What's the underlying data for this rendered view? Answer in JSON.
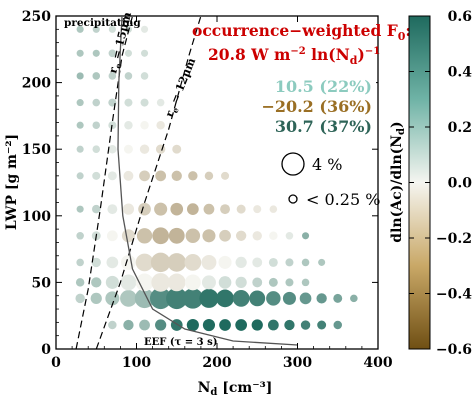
{
  "chart_data": {
    "type": "scatter",
    "title": "",
    "xlabel": "N",
    "xlabel_sub": "d",
    "xlabel_unit": " [cm⁻³]",
    "ylabel": "LWP [g m⁻²]",
    "xlim": [
      0,
      400
    ],
    "ylim": [
      0,
      250
    ],
    "xticks": [
      0,
      100,
      200,
      300,
      400
    ],
    "yticks": [
      0,
      50,
      100,
      150,
      200,
      250
    ],
    "bin_width_x": 20,
    "bin_width_y": 16.67,
    "size_legend": [
      {
        "label": "4 %",
        "occurrence_pct": 4
      },
      {
        "label": "< 0.25 %",
        "occurrence_pct": 0.25
      }
    ],
    "colorbar": {
      "label": "dln(Ac)/dln(N",
      "label_sub": "d",
      "label_end": ")",
      "range": [
        -0.6,
        0.6
      ],
      "ticks": [
        0.6,
        0.4,
        0.2,
        0.0,
        -0.2,
        -0.4,
        -0.6
      ],
      "tick_labels": [
        "0.6",
        "0.4",
        "0.2",
        "0.0",
        "−0.2",
        "−0.4",
        "−0.6"
      ],
      "positive_color": "#1f6a5e",
      "neutral_color": "#f5f5f0",
      "negative_color": "#7a5a1e"
    },
    "annotations": {
      "header_line1": "occurrence−weighted F",
      "header_line1_sub": "0",
      "header_line1_end": ":",
      "header_line2": "20.8 W m",
      "header_line2_exp": "−2",
      "header_line2_mid": " ln(N",
      "header_line2_sub": "d",
      "header_line2_end": ")",
      "header_line2_exp2": "−1",
      "header_color": "#cc0000",
      "components": [
        {
          "value": "10.5 (22%)",
          "color": "#8ccbbf"
        },
        {
          "value": "−20.2 (36%)",
          "color": "#9a6f24"
        },
        {
          "value": "30.7 (37%)",
          "color": "#2e6458"
        }
      ],
      "precipitating": "precipitating",
      "re15": "r",
      "re15_sub": "e",
      "re15_end": " = 15μm",
      "re12": "r",
      "re12_sub": "e",
      "re12_end": " = 12μm",
      "eef": "EEF (τ = 3 s)"
    },
    "curves": {
      "re_15": [
        [
          25,
          0
        ],
        [
          40,
          45
        ],
        [
          55,
          105
        ],
        [
          70,
          170
        ],
        [
          82,
          220
        ],
        [
          95,
          250
        ]
      ],
      "re_12": [
        [
          50,
          0
        ],
        [
          80,
          50
        ],
        [
          110,
          110
        ],
        [
          140,
          165
        ],
        [
          165,
          220
        ],
        [
          180,
          250
        ]
      ],
      "eef": [
        [
          82,
          250
        ],
        [
          78,
          200
        ],
        [
          77,
          150
        ],
        [
          83,
          100
        ],
        [
          95,
          60
        ],
        [
          120,
          30
        ],
        [
          160,
          15
        ],
        [
          220,
          6
        ],
        [
          300,
          3
        ]
      ]
    },
    "points": [
      {
        "x": 70,
        "y": 18,
        "v": 0.15,
        "s": 0.8
      },
      {
        "x": 90,
        "y": 18,
        "v": 0.3,
        "s": 1.2
      },
      {
        "x": 110,
        "y": 18,
        "v": 0.25,
        "s": 1.3
      },
      {
        "x": 130,
        "y": 18,
        "v": 0.45,
        "s": 1.4
      },
      {
        "x": 150,
        "y": 18,
        "v": 0.55,
        "s": 1.5
      },
      {
        "x": 170,
        "y": 18,
        "v": 0.6,
        "s": 1.6
      },
      {
        "x": 190,
        "y": 18,
        "v": 0.6,
        "s": 1.6
      },
      {
        "x": 210,
        "y": 18,
        "v": 0.6,
        "s": 1.5
      },
      {
        "x": 230,
        "y": 18,
        "v": 0.6,
        "s": 1.5
      },
      {
        "x": 250,
        "y": 18,
        "v": 0.6,
        "s": 1.4
      },
      {
        "x": 270,
        "y": 18,
        "v": 0.55,
        "s": 1.3
      },
      {
        "x": 290,
        "y": 18,
        "v": 0.55,
        "s": 1.2
      },
      {
        "x": 310,
        "y": 18,
        "v": 0.5,
        "s": 1.0
      },
      {
        "x": 330,
        "y": 18,
        "v": 0.5,
        "s": 0.9
      },
      {
        "x": 350,
        "y": 18,
        "v": 0.4,
        "s": 0.8
      },
      {
        "x": 30,
        "y": 38,
        "v": 0.15,
        "s": 1.0
      },
      {
        "x": 50,
        "y": 38,
        "v": 0.2,
        "s": 1.4
      },
      {
        "x": 70,
        "y": 38,
        "v": 0.2,
        "s": 2.0
      },
      {
        "x": 90,
        "y": 38,
        "v": 0.2,
        "s": 2.6
      },
      {
        "x": 110,
        "y": 38,
        "v": 0.25,
        "s": 3.2
      },
      {
        "x": 130,
        "y": 38,
        "v": 0.45,
        "s": 3.6
      },
      {
        "x": 150,
        "y": 38,
        "v": 0.5,
        "s": 3.6
      },
      {
        "x": 170,
        "y": 38,
        "v": 0.5,
        "s": 3.4
      },
      {
        "x": 190,
        "y": 38,
        "v": 0.55,
        "s": 3.1
      },
      {
        "x": 210,
        "y": 38,
        "v": 0.55,
        "s": 2.8
      },
      {
        "x": 230,
        "y": 38,
        "v": 0.5,
        "s": 2.6
      },
      {
        "x": 250,
        "y": 38,
        "v": 0.5,
        "s": 2.4
      },
      {
        "x": 270,
        "y": 38,
        "v": 0.45,
        "s": 2.1
      },
      {
        "x": 290,
        "y": 38,
        "v": 0.45,
        "s": 1.8
      },
      {
        "x": 310,
        "y": 38,
        "v": 0.4,
        "s": 1.5
      },
      {
        "x": 330,
        "y": 38,
        "v": 0.4,
        "s": 1.2
      },
      {
        "x": 350,
        "y": 38,
        "v": 0.35,
        "s": 0.9
      },
      {
        "x": 370,
        "y": 38,
        "v": 0.3,
        "s": 0.6
      },
      {
        "x": 30,
        "y": 50,
        "v": 0.2,
        "s": 0.8
      },
      {
        "x": 50,
        "y": 50,
        "v": 0.2,
        "s": 1.2
      },
      {
        "x": 70,
        "y": 50,
        "v": 0.1,
        "s": 1.8
      },
      {
        "x": 90,
        "y": 50,
        "v": 0.05,
        "s": 2.4
      },
      {
        "x": 110,
        "y": 50,
        "v": 0.0,
        "s": 2.8
      },
      {
        "x": 130,
        "y": 50,
        "v": -0.05,
        "s": 3.0
      },
      {
        "x": 150,
        "y": 50,
        "v": -0.05,
        "s": 2.8
      },
      {
        "x": 170,
        "y": 50,
        "v": 0.0,
        "s": 2.4
      },
      {
        "x": 190,
        "y": 50,
        "v": 0.05,
        "s": 2.0
      },
      {
        "x": 210,
        "y": 50,
        "v": 0.1,
        "s": 1.7
      },
      {
        "x": 230,
        "y": 50,
        "v": 0.1,
        "s": 1.4
      },
      {
        "x": 250,
        "y": 50,
        "v": 0.15,
        "s": 1.1
      },
      {
        "x": 270,
        "y": 50,
        "v": 0.2,
        "s": 0.9
      },
      {
        "x": 290,
        "y": 50,
        "v": 0.2,
        "s": 0.7
      },
      {
        "x": 310,
        "y": 50,
        "v": 0.2,
        "s": 0.6
      },
      {
        "x": 30,
        "y": 65,
        "v": 0.15,
        "s": 0.6
      },
      {
        "x": 50,
        "y": 65,
        "v": 0.1,
        "s": 1.0
      },
      {
        "x": 70,
        "y": 65,
        "v": 0.05,
        "s": 1.5
      },
      {
        "x": 90,
        "y": 65,
        "v": 0.0,
        "s": 2.2
      },
      {
        "x": 110,
        "y": 65,
        "v": -0.1,
        "s": 2.8
      },
      {
        "x": 130,
        "y": 65,
        "v": -0.15,
        "s": 3.2
      },
      {
        "x": 150,
        "y": 65,
        "v": -0.15,
        "s": 3.0
      },
      {
        "x": 170,
        "y": 65,
        "v": -0.1,
        "s": 2.6
      },
      {
        "x": 190,
        "y": 65,
        "v": -0.05,
        "s": 2.2
      },
      {
        "x": 210,
        "y": 65,
        "v": 0.0,
        "s": 1.8
      },
      {
        "x": 230,
        "y": 65,
        "v": 0.05,
        "s": 1.4
      },
      {
        "x": 250,
        "y": 65,
        "v": 0.05,
        "s": 1.1
      },
      {
        "x": 270,
        "y": 65,
        "v": 0.1,
        "s": 0.9
      },
      {
        "x": 290,
        "y": 65,
        "v": 0.15,
        "s": 0.7
      },
      {
        "x": 310,
        "y": 65,
        "v": 0.2,
        "s": 0.6
      },
      {
        "x": 330,
        "y": 65,
        "v": 0.2,
        "s": 0.5
      },
      {
        "x": 30,
        "y": 85,
        "v": 0.15,
        "s": 0.6
      },
      {
        "x": 50,
        "y": 85,
        "v": 0.1,
        "s": 0.9
      },
      {
        "x": 70,
        "y": 85,
        "v": 0.0,
        "s": 1.3
      },
      {
        "x": 90,
        "y": 85,
        "v": -0.1,
        "s": 1.8
      },
      {
        "x": 110,
        "y": 85,
        "v": -0.2,
        "s": 2.3
      },
      {
        "x": 130,
        "y": 85,
        "v": -0.25,
        "s": 2.6
      },
      {
        "x": 150,
        "y": 85,
        "v": -0.25,
        "s": 2.4
      },
      {
        "x": 170,
        "y": 85,
        "v": -0.2,
        "s": 2.1
      },
      {
        "x": 190,
        "y": 85,
        "v": -0.2,
        "s": 1.8
      },
      {
        "x": 210,
        "y": 85,
        "v": -0.15,
        "s": 1.5
      },
      {
        "x": 230,
        "y": 85,
        "v": -0.1,
        "s": 1.2
      },
      {
        "x": 250,
        "y": 85,
        "v": -0.05,
        "s": 1.0
      },
      {
        "x": 270,
        "y": 85,
        "v": 0.0,
        "s": 0.8
      },
      {
        "x": 290,
        "y": 85,
        "v": 0.05,
        "s": 0.6
      },
      {
        "x": 310,
        "y": 85,
        "v": 0.3,
        "s": 0.5
      },
      {
        "x": 30,
        "y": 105,
        "v": 0.2,
        "s": 0.5
      },
      {
        "x": 50,
        "y": 105,
        "v": 0.15,
        "s": 0.8
      },
      {
        "x": 70,
        "y": 105,
        "v": 0.05,
        "s": 1.1
      },
      {
        "x": 90,
        "y": 105,
        "v": -0.05,
        "s": 1.4
      },
      {
        "x": 110,
        "y": 105,
        "v": -0.15,
        "s": 1.7
      },
      {
        "x": 130,
        "y": 105,
        "v": -0.2,
        "s": 1.8
      },
      {
        "x": 150,
        "y": 105,
        "v": -0.25,
        "s": 1.7
      },
      {
        "x": 170,
        "y": 105,
        "v": -0.25,
        "s": 1.5
      },
      {
        "x": 190,
        "y": 105,
        "v": -0.2,
        "s": 1.3
      },
      {
        "x": 210,
        "y": 105,
        "v": -0.15,
        "s": 1.1
      },
      {
        "x": 230,
        "y": 105,
        "v": -0.1,
        "s": 0.9
      },
      {
        "x": 250,
        "y": 105,
        "v": -0.05,
        "s": 0.7
      },
      {
        "x": 270,
        "y": 105,
        "v": -0.05,
        "s": 0.6
      },
      {
        "x": 30,
        "y": 130,
        "v": 0.15,
        "s": 0.5
      },
      {
        "x": 50,
        "y": 130,
        "v": 0.1,
        "s": 0.7
      },
      {
        "x": 70,
        "y": 130,
        "v": 0.05,
        "s": 0.9
      },
      {
        "x": 90,
        "y": 130,
        "v": -0.05,
        "s": 1.1
      },
      {
        "x": 110,
        "y": 130,
        "v": -0.15,
        "s": 1.3
      },
      {
        "x": 130,
        "y": 130,
        "v": -0.2,
        "s": 1.3
      },
      {
        "x": 150,
        "y": 130,
        "v": -0.2,
        "s": 1.2
      },
      {
        "x": 170,
        "y": 130,
        "v": -0.2,
        "s": 1.0
      },
      {
        "x": 190,
        "y": 130,
        "v": -0.15,
        "s": 0.8
      },
      {
        "x": 210,
        "y": 130,
        "v": -0.1,
        "s": 0.7
      },
      {
        "x": 30,
        "y": 150,
        "v": 0.15,
        "s": 0.5
      },
      {
        "x": 50,
        "y": 150,
        "v": 0.1,
        "s": 0.6
      },
      {
        "x": 70,
        "y": 150,
        "v": 0.05,
        "s": 0.8
      },
      {
        "x": 90,
        "y": 150,
        "v": 0.0,
        "s": 0.9
      },
      {
        "x": 110,
        "y": 150,
        "v": -0.05,
        "s": 1.0
      },
      {
        "x": 130,
        "y": 150,
        "v": -0.1,
        "s": 1.0
      },
      {
        "x": 150,
        "y": 150,
        "v": -0.1,
        "s": 0.9
      },
      {
        "x": 30,
        "y": 168,
        "v": 0.2,
        "s": 0.5
      },
      {
        "x": 50,
        "y": 168,
        "v": 0.15,
        "s": 0.6
      },
      {
        "x": 70,
        "y": 168,
        "v": 0.1,
        "s": 0.7
      },
      {
        "x": 90,
        "y": 168,
        "v": 0.05,
        "s": 0.8
      },
      {
        "x": 110,
        "y": 168,
        "v": 0.0,
        "s": 0.8
      },
      {
        "x": 130,
        "y": 168,
        "v": -0.05,
        "s": 0.8
      },
      {
        "x": 30,
        "y": 185,
        "v": 0.2,
        "s": 0.5
      },
      {
        "x": 50,
        "y": 185,
        "v": 0.15,
        "s": 0.6
      },
      {
        "x": 70,
        "y": 185,
        "v": 0.15,
        "s": 0.7
      },
      {
        "x": 90,
        "y": 185,
        "v": 0.1,
        "s": 0.7
      },
      {
        "x": 110,
        "y": 185,
        "v": 0.1,
        "s": 0.7
      },
      {
        "x": 130,
        "y": 185,
        "v": 0.05,
        "s": 0.6
      },
      {
        "x": 30,
        "y": 205,
        "v": 0.25,
        "s": 0.5
      },
      {
        "x": 50,
        "y": 205,
        "v": 0.2,
        "s": 0.6
      },
      {
        "x": 70,
        "y": 205,
        "v": 0.15,
        "s": 0.6
      },
      {
        "x": 90,
        "y": 205,
        "v": 0.15,
        "s": 0.6
      },
      {
        "x": 110,
        "y": 205,
        "v": 0.1,
        "s": 0.6
      },
      {
        "x": 30,
        "y": 222,
        "v": 0.2,
        "s": 0.5
      },
      {
        "x": 50,
        "y": 222,
        "v": 0.2,
        "s": 0.5
      },
      {
        "x": 70,
        "y": 222,
        "v": 0.15,
        "s": 0.6
      },
      {
        "x": 90,
        "y": 222,
        "v": 0.1,
        "s": 0.5
      },
      {
        "x": 110,
        "y": 222,
        "v": 0.1,
        "s": 0.5
      },
      {
        "x": 30,
        "y": 240,
        "v": 0.2,
        "s": 0.5
      },
      {
        "x": 50,
        "y": 240,
        "v": 0.15,
        "s": 0.5
      },
      {
        "x": 70,
        "y": 240,
        "v": 0.1,
        "s": 0.5
      },
      {
        "x": 90,
        "y": 240,
        "v": 0.1,
        "s": 0.5
      },
      {
        "x": 110,
        "y": 240,
        "v": 0.05,
        "s": 0.5
      }
    ]
  }
}
